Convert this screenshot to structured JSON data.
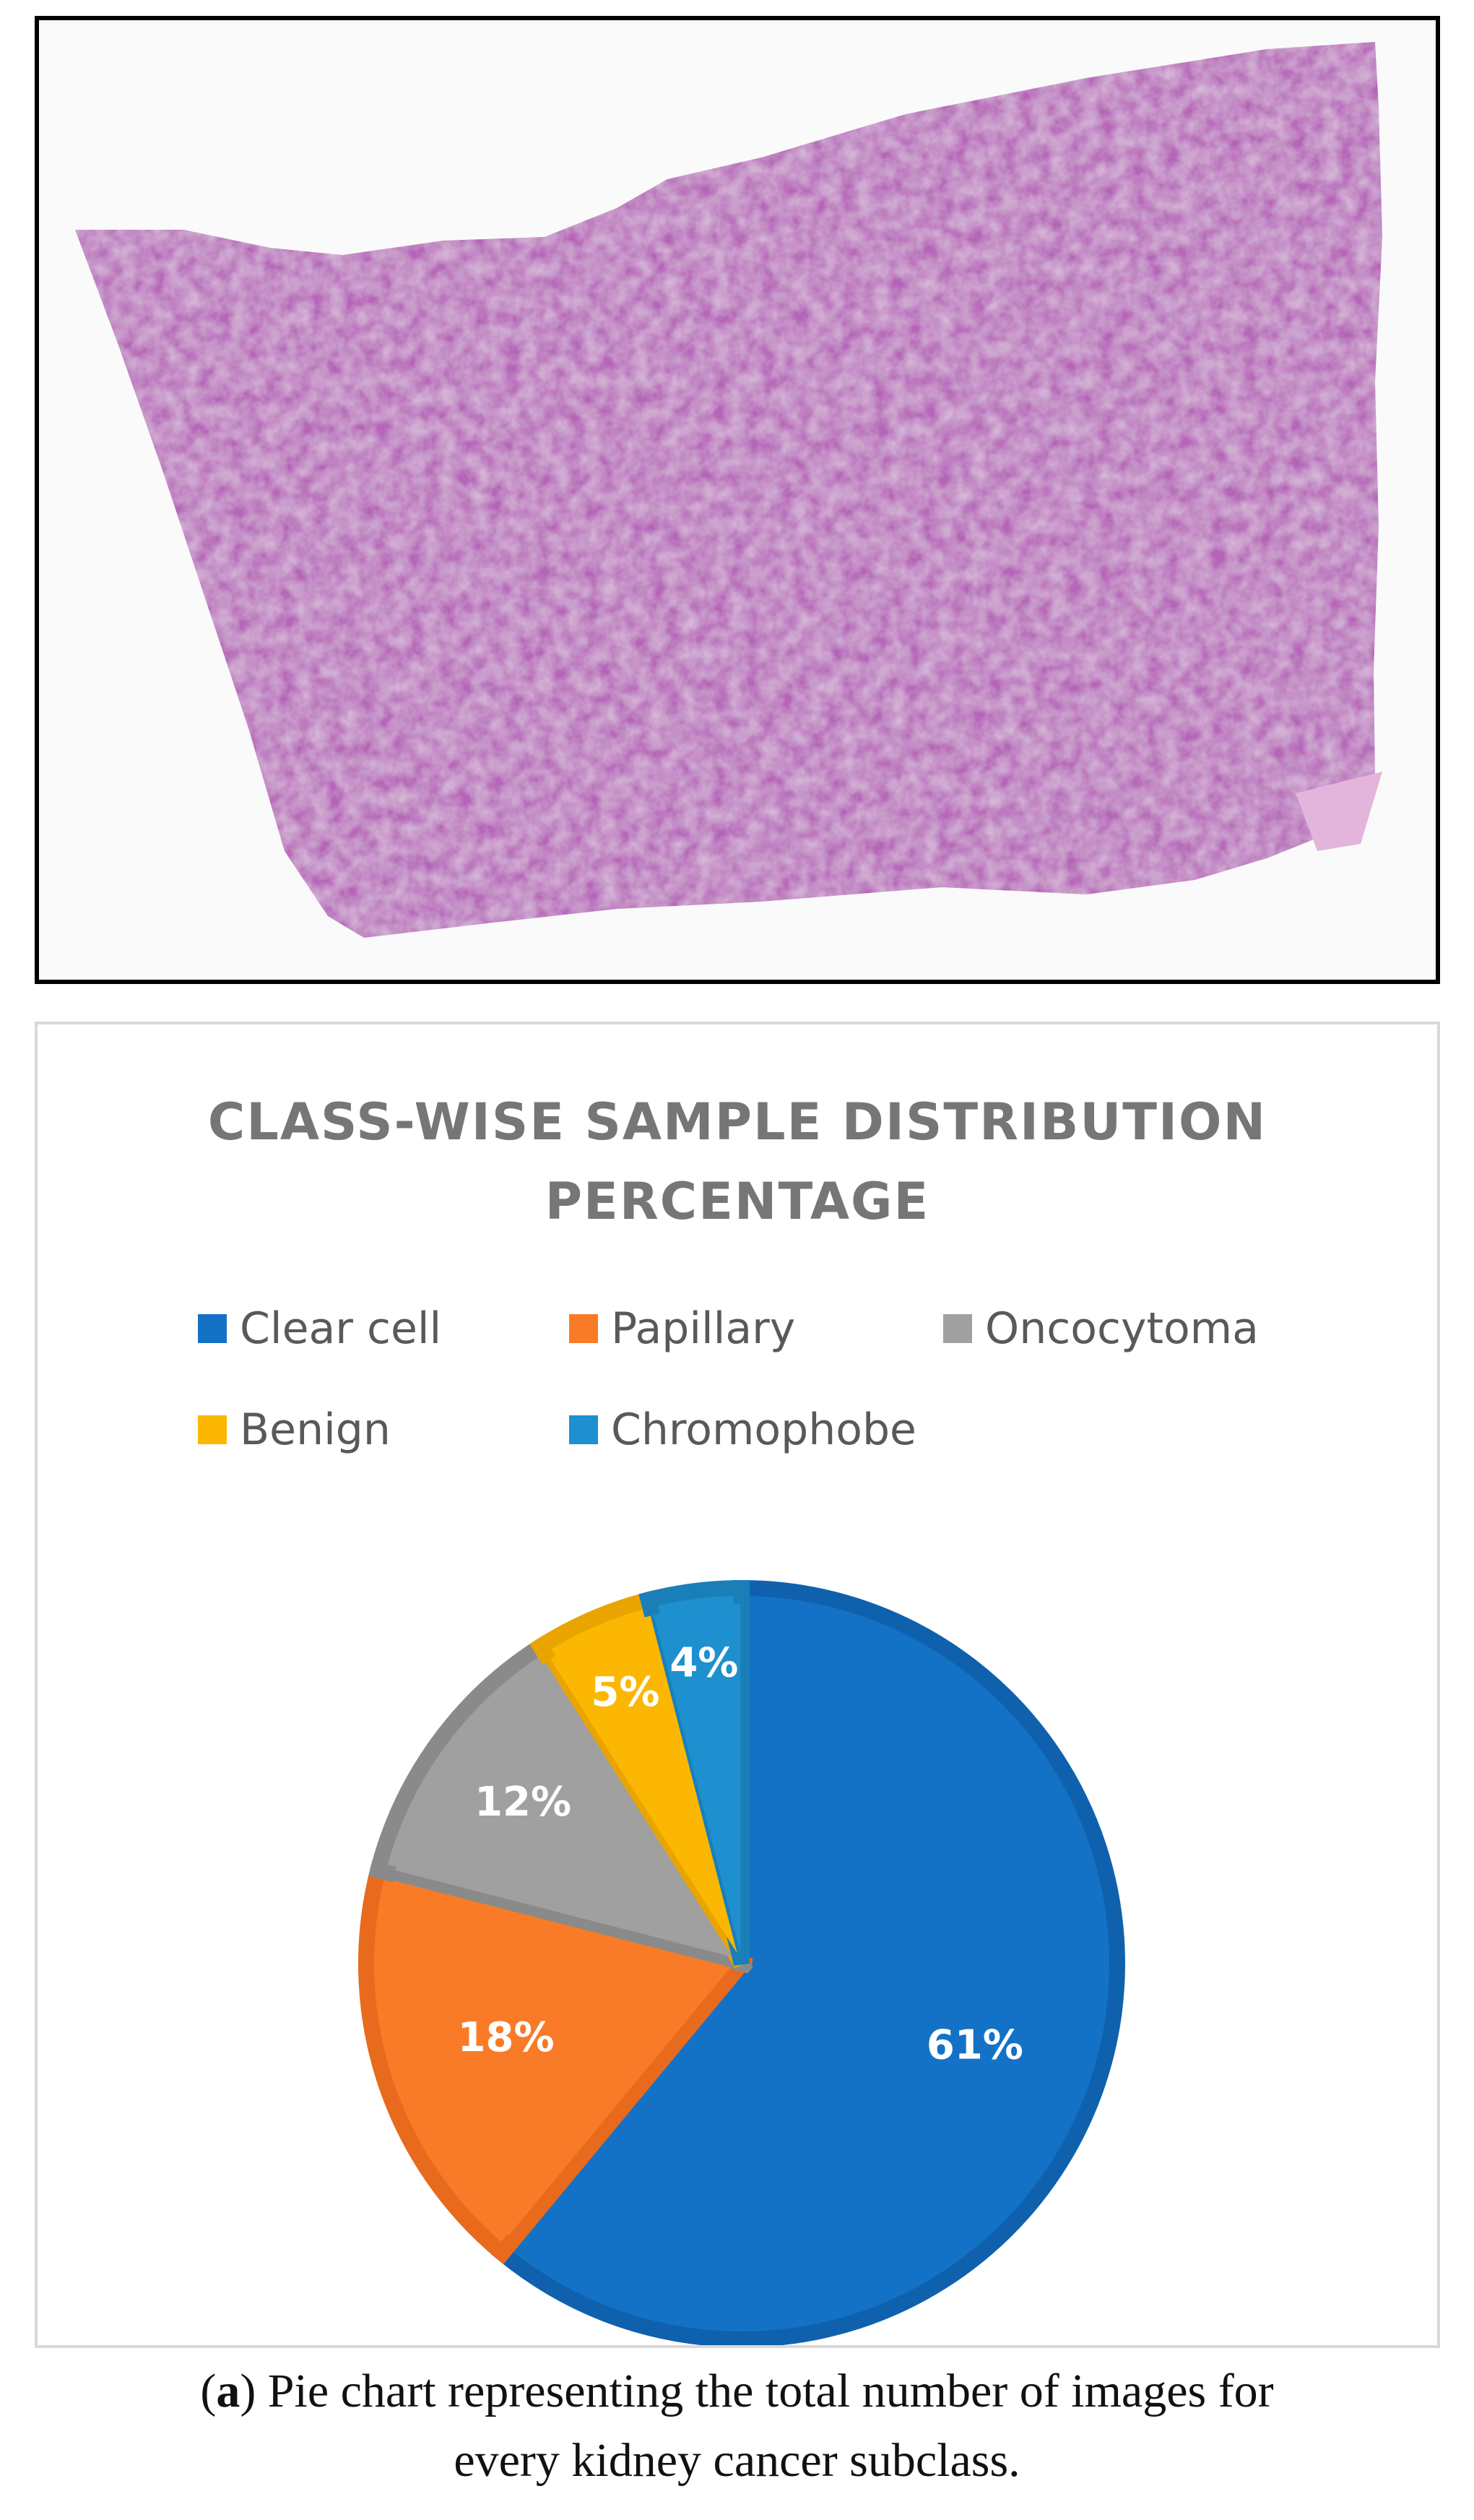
{
  "image_panel": {
    "tissue_color": "#b565b8"
  },
  "chart_data": {
    "type": "pie",
    "title_lines": [
      "CLASS-WISE SAMPLE DISTRIBUTION",
      "PERCENTAGE"
    ],
    "legend_position": "top",
    "categories": [
      "Clear cell",
      "Papillary",
      "Oncocytoma",
      "Benign",
      "Chromophobe"
    ],
    "values": [
      61,
      18,
      12,
      5,
      4
    ],
    "labels": [
      "61%",
      "18%",
      "12%",
      "5%",
      "4%"
    ],
    "colors": [
      "#1372c6",
      "#f97b27",
      "#a0a0a0",
      "#fbb702",
      "#1e90cf"
    ],
    "edge_colors": [
      "#0f61ad",
      "#e86a1c",
      "#8a8a8a",
      "#e9a400",
      "#1a7fb8"
    ]
  },
  "caption": {
    "tag": "a",
    "line1_rest": "Pie chart representing the total number of images for",
    "line2": "every kidney cancer subclass."
  }
}
